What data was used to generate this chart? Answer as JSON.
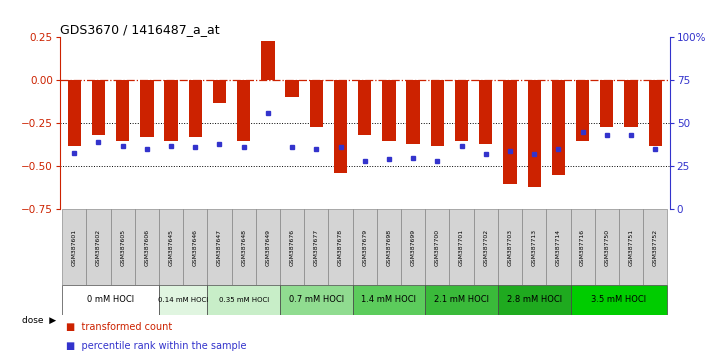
{
  "title": "GDS3670 / 1416487_a_at",
  "samples": [
    "GSM387601",
    "GSM387602",
    "GSM387605",
    "GSM387606",
    "GSM387645",
    "GSM387646",
    "GSM387647",
    "GSM387648",
    "GSM387649",
    "GSM387676",
    "GSM387677",
    "GSM387678",
    "GSM387679",
    "GSM387698",
    "GSM387699",
    "GSM387700",
    "GSM387701",
    "GSM387702",
    "GSM387703",
    "GSM387713",
    "GSM387714",
    "GSM387716",
    "GSM387750",
    "GSM387751",
    "GSM387752"
  ],
  "red_values": [
    -0.38,
    -0.32,
    -0.35,
    -0.33,
    -0.35,
    -0.33,
    -0.13,
    -0.35,
    0.23,
    -0.1,
    -0.27,
    -0.54,
    -0.32,
    -0.35,
    -0.37,
    -0.38,
    -0.35,
    -0.37,
    -0.6,
    -0.62,
    -0.55,
    -0.35,
    -0.27,
    -0.27,
    -0.38
  ],
  "blue_pct": [
    33,
    39,
    37,
    35,
    37,
    36,
    38,
    36,
    56,
    36,
    35,
    36,
    28,
    29,
    30,
    28,
    37,
    32,
    34,
    32,
    35,
    45,
    43,
    43,
    35
  ],
  "dose_groups": [
    {
      "label": "0 mM HOCl",
      "start": 0,
      "end": 4
    },
    {
      "label": "0.14 mM HOCl",
      "start": 4,
      "end": 6
    },
    {
      "label": "0.35 mM HOCl",
      "start": 6,
      "end": 9
    },
    {
      "label": "0.7 mM HOCl",
      "start": 9,
      "end": 12
    },
    {
      "label": "1.4 mM HOCl",
      "start": 12,
      "end": 15
    },
    {
      "label": "2.1 mM HOCl",
      "start": 15,
      "end": 18
    },
    {
      "label": "2.8 mM HOCl",
      "start": 18,
      "end": 21
    },
    {
      "label": "3.5 mM HOCl",
      "start": 21,
      "end": 25
    }
  ],
  "dose_colors": [
    "#ffffff",
    "#e0f5e0",
    "#c8eec8",
    "#90dc90",
    "#5ccc5c",
    "#3aba3a",
    "#1faa1f",
    "#00cc00"
  ],
  "ylim_left": [
    -0.75,
    0.25
  ],
  "yticks_left": [
    0.25,
    0.0,
    -0.25,
    -0.5,
    -0.75
  ],
  "ylim_right": [
    0,
    100
  ],
  "yticks_right": [
    100,
    75,
    50,
    25,
    0
  ],
  "bar_color": "#cc2200",
  "dot_color": "#3333cc",
  "bar_width": 0.55,
  "bg_color": "#ffffff",
  "sample_box_color": "#d4d4d4",
  "grid_hlines": [
    -0.25,
    -0.5
  ]
}
